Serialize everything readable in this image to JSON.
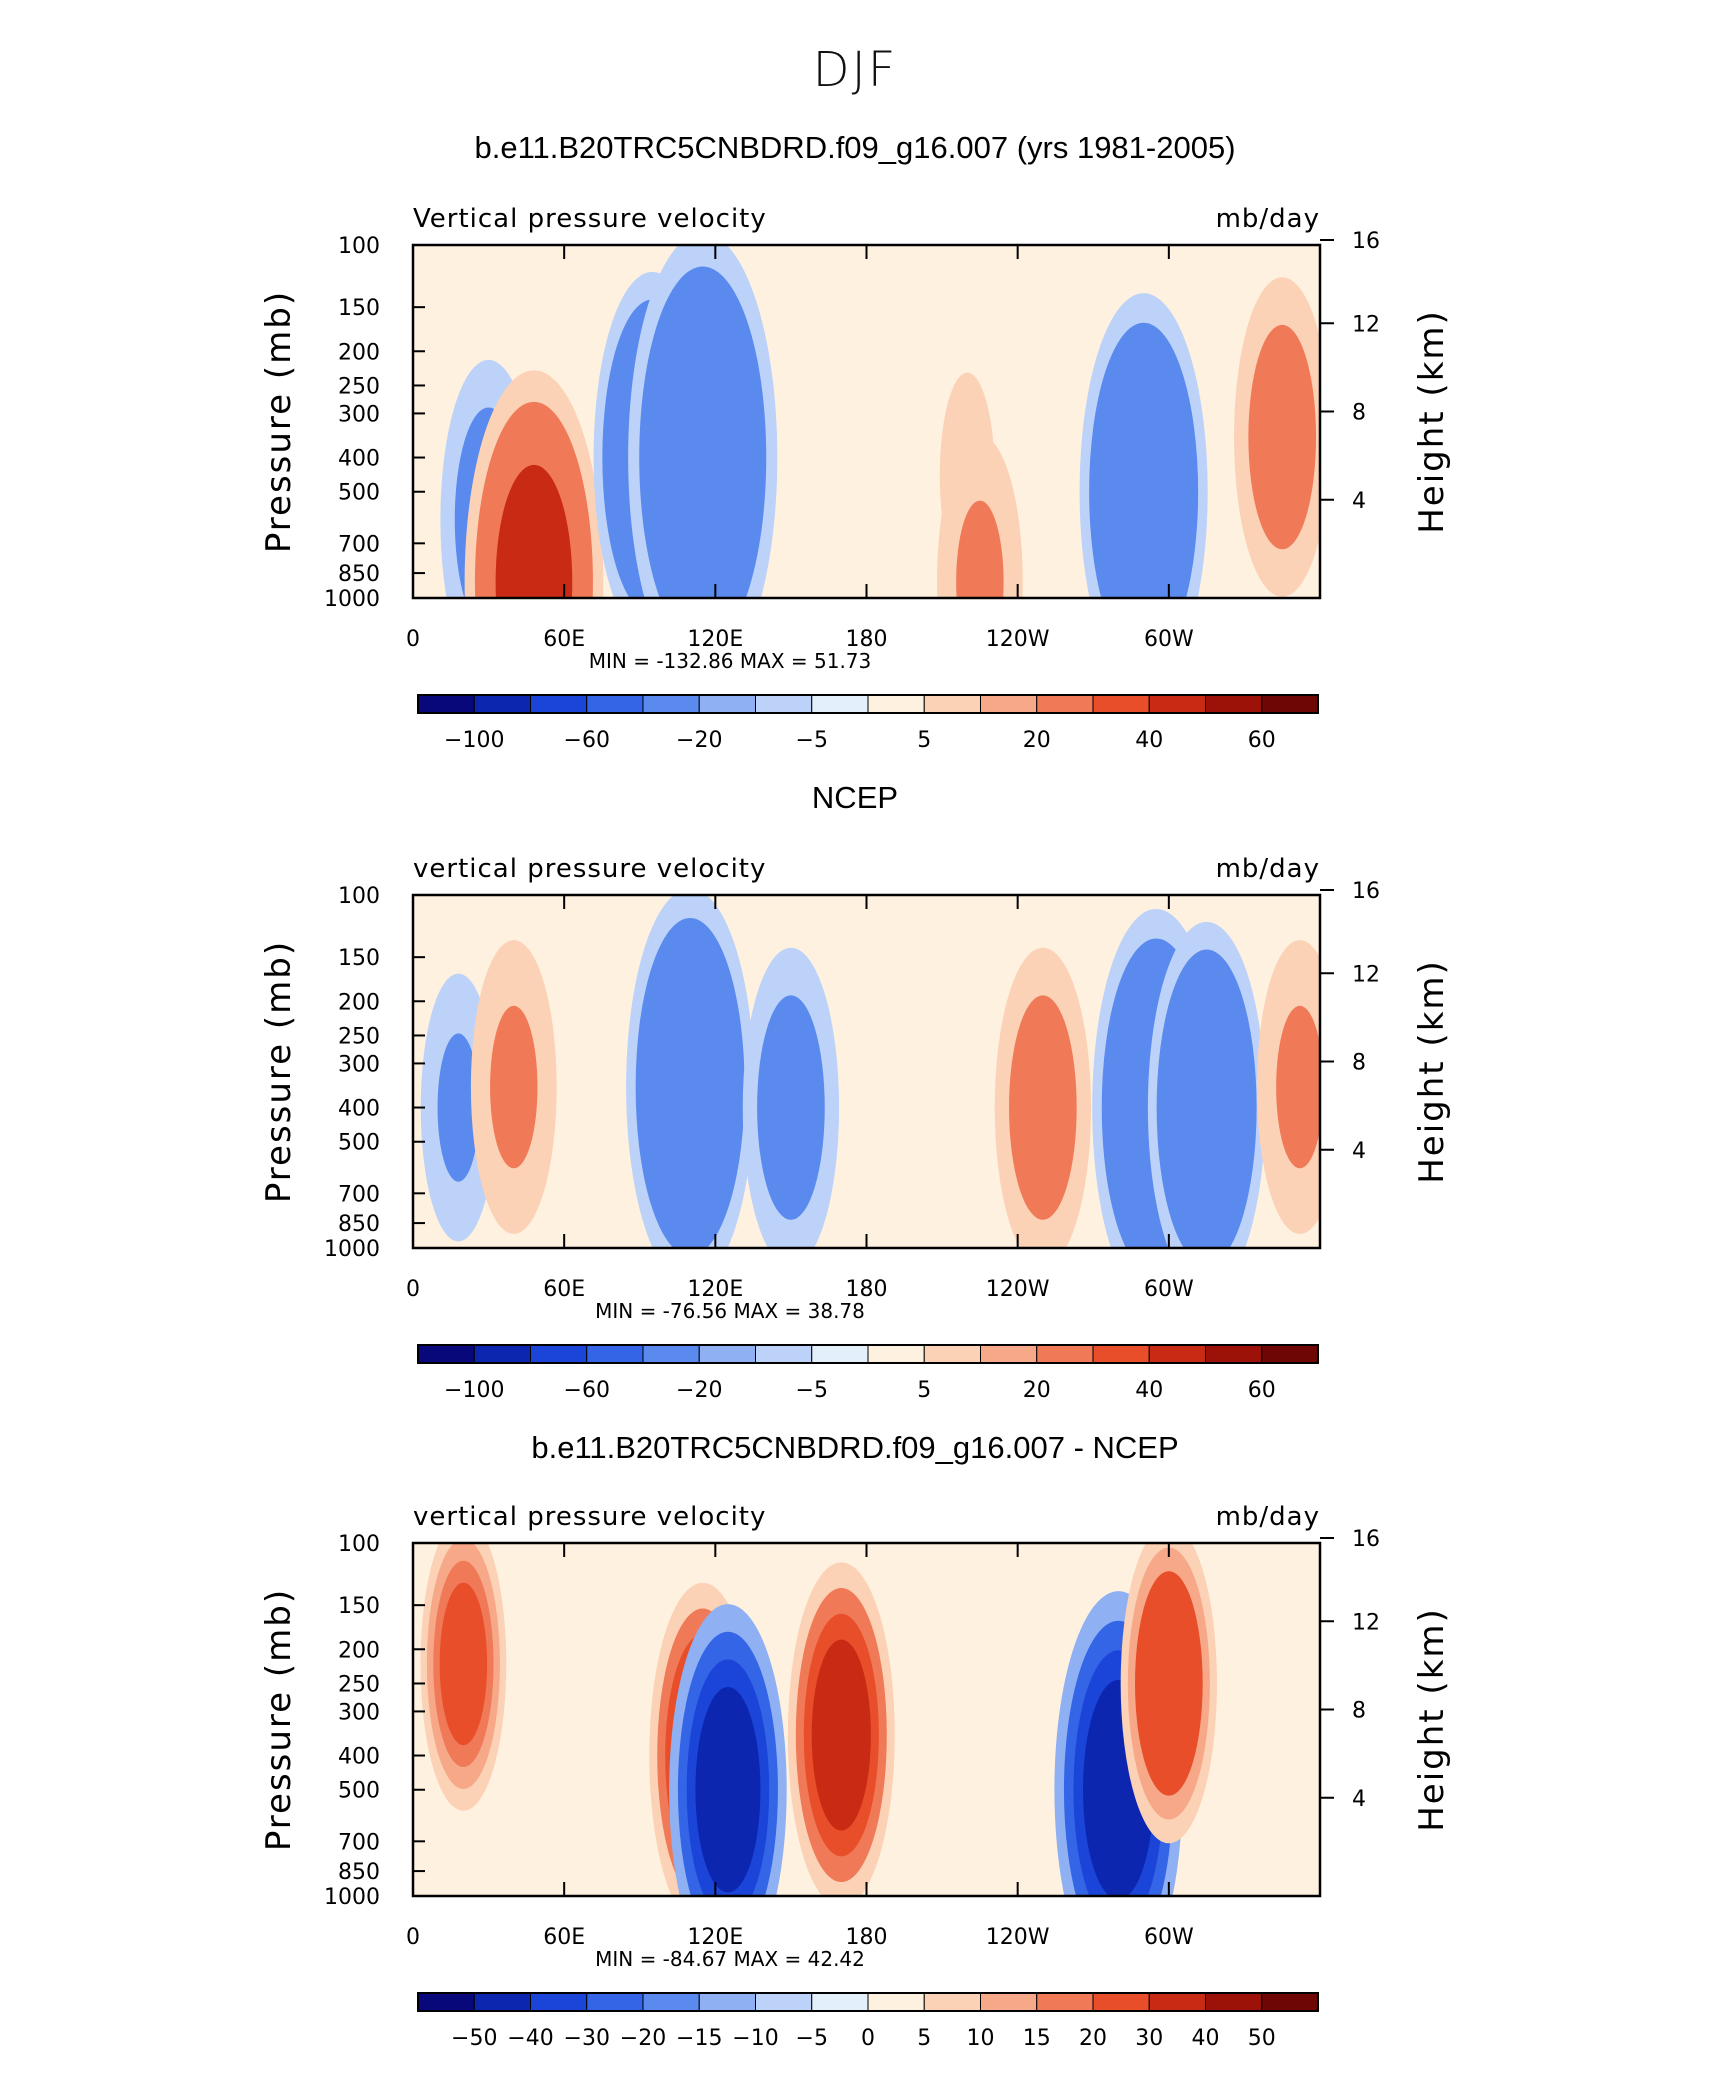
{
  "page_title": "DJF",
  "colorbar_fill": {
    "colors": [
      "#08087a",
      "#0c26b0",
      "#1a45d8",
      "#3465e6",
      "#5a8aee",
      "#8fb0f2",
      "#bcd2f8",
      "#e4effc",
      "#fff1e0",
      "#fbd2b6",
      "#f6a888",
      "#f07a57",
      "#e84e2a",
      "#c92a14",
      "#9c1208",
      "#6e0606"
    ]
  },
  "panels": [
    {
      "title": "b.e11.B20TRC5CNBDRD.f09_g16.007 (yrs 1981-2005)",
      "left_label": "Vertical pressure velocity",
      "right_label": "mb/day",
      "ylabel": "Pressure (mb)",
      "ylabel2": "Height (km)",
      "min_max": "MIN = -132.86   MAX =   51.73",
      "colorbar_labels": [
        "−100",
        "−60",
        "−20",
        "−5",
        "5",
        "20",
        "40",
        "60"
      ]
    },
    {
      "title": "NCEP",
      "left_label": "vertical pressure velocity",
      "right_label": "mb/day",
      "ylabel": "Pressure (mb)",
      "ylabel2": "Height (km)",
      "min_max": "MIN = -76.56   MAX =   38.78",
      "colorbar_labels": [
        "−100",
        "−60",
        "−20",
        "−5",
        "5",
        "20",
        "40",
        "60"
      ]
    },
    {
      "title": "b.e11.B20TRC5CNBDRD.f09_g16.007 - NCEP",
      "left_label": "vertical pressure velocity",
      "right_label": "mb/day",
      "ylabel": "Pressure (mb)",
      "ylabel2": "Height (km)",
      "min_max": "MIN = -84.67   MAX =   42.42",
      "colorbar_labels": [
        "−50",
        "−40",
        "−30",
        "−20",
        "−15",
        "−10",
        "−5",
        "0",
        "5",
        "10",
        "15",
        "20",
        "30",
        "40",
        "50"
      ]
    }
  ],
  "chart_data": [
    {
      "type": "heatmap",
      "title": "b.e11.B20TRC5CNBDRD.f09_g16.007 (yrs 1981-2005)",
      "variable": "Vertical pressure velocity",
      "units": "mb/day",
      "xlabel": "",
      "ylabel": "Pressure (mb)",
      "ylabel2": "Height (km)",
      "x_ticks": [
        "0",
        "60E",
        "120E",
        "180",
        "120W",
        "60W"
      ],
      "y_ticks": [
        "100",
        "150",
        "200",
        "250",
        "300",
        "400",
        "500",
        "700",
        "850",
        "1000"
      ],
      "y2_ticks": [
        "4",
        "8",
        "12",
        "16"
      ],
      "ylim": [
        1000,
        100
      ],
      "y_scale": "log",
      "min": -132.86,
      "max": 51.73,
      "colorbar_levels": [
        -100,
        -60,
        -20,
        -5,
        5,
        20,
        40,
        60
      ],
      "features": [
        {
          "lon": 30,
          "p": 600,
          "value": -30
        },
        {
          "lon": 48,
          "p": 900,
          "value": 50
        },
        {
          "lon": 95,
          "p": 400,
          "value": -40
        },
        {
          "lon": 115,
          "p": 400,
          "value": -55
        },
        {
          "lon": 220,
          "p": 450,
          "value": 15
        },
        {
          "lon": 225,
          "p": 900,
          "value": 25
        },
        {
          "lon": 290,
          "p": 500,
          "value": -45
        },
        {
          "lon": 345,
          "p": 350,
          "value": 30
        }
      ]
    },
    {
      "type": "heatmap",
      "title": "NCEP",
      "variable": "vertical pressure velocity",
      "units": "mb/day",
      "xlabel": "",
      "ylabel": "Pressure (mb)",
      "ylabel2": "Height (km)",
      "x_ticks": [
        "0",
        "60E",
        "120E",
        "180",
        "120W",
        "60W"
      ],
      "y_ticks": [
        "100",
        "150",
        "200",
        "250",
        "300",
        "400",
        "500",
        "700",
        "850",
        "1000"
      ],
      "y2_ticks": [
        "4",
        "8",
        "12",
        "16"
      ],
      "ylim": [
        1000,
        100
      ],
      "y_scale": "log",
      "min": -76.56,
      "max": 38.78,
      "colorbar_levels": [
        -100,
        -60,
        -20,
        -5,
        5,
        20,
        40,
        60
      ],
      "features": [
        {
          "lon": 18,
          "p": 400,
          "value": -20
        },
        {
          "lon": 40,
          "p": 350,
          "value": 25
        },
        {
          "lon": 110,
          "p": 350,
          "value": -45
        },
        {
          "lon": 150,
          "p": 400,
          "value": -30
        },
        {
          "lon": 250,
          "p": 400,
          "value": 30
        },
        {
          "lon": 295,
          "p": 400,
          "value": -45
        },
        {
          "lon": 315,
          "p": 400,
          "value": -40
        },
        {
          "lon": 352,
          "p": 350,
          "value": 25
        }
      ]
    },
    {
      "type": "heatmap",
      "title": "b.e11.B20TRC5CNBDRD.f09_g16.007 - NCEP",
      "variable": "vertical pressure velocity",
      "units": "mb/day",
      "xlabel": "",
      "ylabel": "Pressure (mb)",
      "ylabel2": "Height (km)",
      "x_ticks": [
        "0",
        "60E",
        "120E",
        "180",
        "120W",
        "60W"
      ],
      "y_ticks": [
        "100",
        "150",
        "200",
        "250",
        "300",
        "400",
        "500",
        "700",
        "850",
        "1000"
      ],
      "y2_ticks": [
        "4",
        "8",
        "12",
        "16"
      ],
      "ylim": [
        1000,
        100
      ],
      "y_scale": "log",
      "min": -84.67,
      "max": 42.42,
      "colorbar_levels": [
        -50,
        -40,
        -30,
        -20,
        -15,
        -10,
        -5,
        0,
        5,
        10,
        15,
        20,
        30,
        40,
        50
      ],
      "features": [
        {
          "lon": 20,
          "p": 220,
          "value": 25
        },
        {
          "lon": 115,
          "p": 400,
          "value": 35
        },
        {
          "lon": 125,
          "p": 500,
          "value": -40
        },
        {
          "lon": 170,
          "p": 350,
          "value": 35
        },
        {
          "lon": 280,
          "p": 500,
          "value": -45
        },
        {
          "lon": 300,
          "p": 250,
          "value": 30
        }
      ]
    }
  ]
}
